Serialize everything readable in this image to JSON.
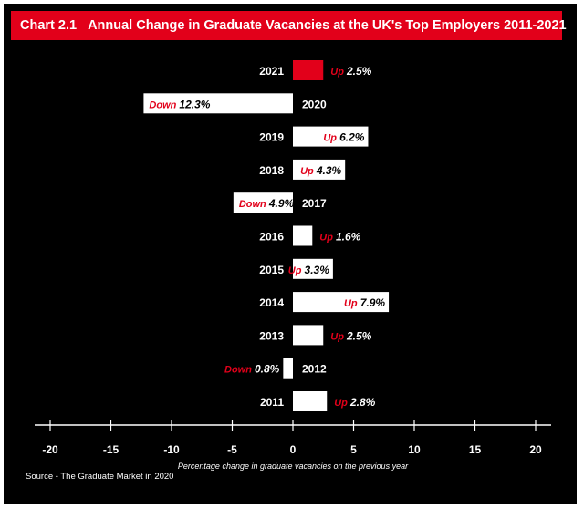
{
  "header": {
    "chart_number": "Chart 2.1",
    "title": "Annual Change in Graduate Vacancies at the UK's Top Employers 2011-2021"
  },
  "source": "Source - The Graduate Market in 2020",
  "colors": {
    "background": "#000000",
    "accent": "#e2001a",
    "bar_default": "#ffffff",
    "bar_highlight": "#e2001a",
    "text": "#ffffff"
  },
  "chart_data": {
    "type": "bar",
    "orientation": "horizontal",
    "title": "Annual Change in Graduate Vacancies at the UK's Top Employers 2011-2021",
    "xlabel": "Percentage change in graduate vacancies on the previous year",
    "ylabel": "",
    "xlim": [
      -20,
      20
    ],
    "xticks": [
      -20,
      -15,
      -10,
      -5,
      0,
      5,
      10,
      15,
      20
    ],
    "grid": false,
    "categories": [
      "2021",
      "2020",
      "2019",
      "2018",
      "2017",
      "2016",
      "2015",
      "2014",
      "2013",
      "2012",
      "2011"
    ],
    "values": [
      2.5,
      -12.3,
      6.2,
      4.3,
      -4.9,
      1.6,
      3.3,
      7.9,
      2.5,
      -0.8,
      2.8
    ],
    "direction_labels": [
      "Up",
      "Down",
      "Up",
      "Up",
      "Down",
      "Up",
      "Up",
      "Up",
      "Up",
      "Down",
      "Up"
    ],
    "value_labels": [
      "2.5%",
      "12.3%",
      "6.2%",
      "4.3%",
      "4.9%",
      "1.6%",
      "3.3%",
      "7.9%",
      "2.5%",
      "0.8%",
      "2.8%"
    ],
    "highlight": "2021"
  }
}
